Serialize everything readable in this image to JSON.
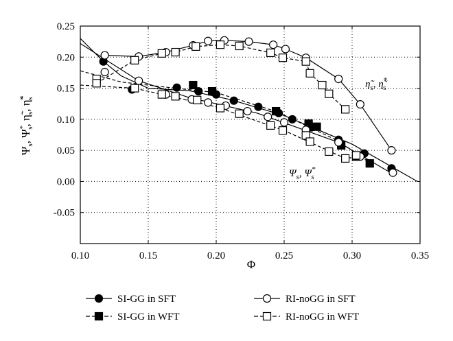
{
  "chart_data": {
    "type": "line",
    "title": "",
    "xlabel": "Φ",
    "ylabel": "Ψ_s, Ψ*_s, η̃_s, η̃*_s",
    "xlim": [
      0.1,
      0.35
    ],
    "ylim": [
      -0.1,
      0.25
    ],
    "x_ticks": [
      0.1,
      0.15,
      0.2,
      0.25,
      0.3,
      0.35
    ],
    "y_ticks": [
      -0.05,
      0.0,
      0.05,
      0.1,
      0.15,
      0.2,
      0.25
    ],
    "x_tick_labels": [
      "0.10",
      "0.15",
      "0.20",
      "0.25",
      "0.30",
      "0.35"
    ],
    "y_tick_labels": [
      "-0.05",
      "0.00",
      "0.05",
      "0.10",
      "0.15",
      "0.20",
      "0.25"
    ],
    "grid": "dotted",
    "annotations": [
      {
        "text": "η̃_s, η̃*_s",
        "near": "efficiency curves"
      },
      {
        "text": "Ψ_s, Ψ*_s",
        "near": "pressure coefficient curves"
      }
    ],
    "series": [
      {
        "name": "SI-GG in SFT",
        "marker": "filled-circle",
        "line": "solid",
        "points": [
          [
            0.117,
            0.193
          ],
          [
            0.138,
            0.148
          ],
          [
            0.171,
            0.151
          ],
          [
            0.187,
            0.145
          ],
          [
            0.2,
            0.14
          ],
          [
            0.213,
            0.13
          ],
          [
            0.231,
            0.12
          ],
          [
            0.246,
            0.11
          ],
          [
            0.256,
            0.1
          ],
          [
            0.27,
            0.087
          ],
          [
            0.29,
            0.067
          ],
          [
            0.309,
            0.045
          ],
          [
            0.329,
            0.021
          ]
        ]
      },
      {
        "name": "SI-GG in WFT",
        "marker": "filled-square",
        "line": "dashed",
        "points": [
          [
            0.183,
            0.155
          ],
          [
            0.197,
            0.145
          ],
          [
            0.244,
            0.113
          ],
          [
            0.268,
            0.093
          ],
          [
            0.274,
            0.088
          ],
          [
            0.292,
            0.058
          ],
          [
            0.303,
            0.04
          ],
          [
            0.313,
            0.029
          ]
        ]
      },
      {
        "name": "RI-noGG in SFT",
        "marker": "open-circle",
        "line": "solid",
        "points": [
          [
            0.118,
            0.176
          ],
          [
            0.143,
            0.162
          ],
          [
            0.163,
            0.14
          ],
          [
            0.182,
            0.132
          ],
          [
            0.194,
            0.127
          ],
          [
            0.207,
            0.122
          ],
          [
            0.223,
            0.113
          ],
          [
            0.238,
            0.104
          ],
          [
            0.25,
            0.095
          ],
          [
            0.266,
            0.083
          ],
          [
            0.29,
            0.063
          ],
          [
            0.306,
            0.04
          ],
          [
            0.33,
            0.014
          ]
        ]
      },
      {
        "name": "RI-noGG in WFT",
        "marker": "open-square",
        "line": "dashed",
        "points": [
          [
            0.112,
            0.165
          ],
          [
            0.14,
            0.15
          ],
          [
            0.16,
            0.14
          ],
          [
            0.17,
            0.137
          ],
          [
            0.186,
            0.131
          ],
          [
            0.203,
            0.118
          ],
          [
            0.217,
            0.109
          ],
          [
            0.24,
            0.09
          ],
          [
            0.249,
            0.082
          ],
          [
            0.266,
            0.074
          ],
          [
            0.269,
            0.064
          ],
          [
            0.283,
            0.048
          ],
          [
            0.295,
            0.037
          ],
          [
            0.303,
            0.042
          ]
        ]
      },
      {
        "name": "RI-noGG in SFT (efficiency)",
        "marker": "open-circle",
        "line": "solid",
        "legend": false,
        "points": [
          [
            0.118,
            0.203
          ],
          [
            0.143,
            0.201
          ],
          [
            0.163,
            0.208
          ],
          [
            0.183,
            0.219
          ],
          [
            0.194,
            0.226
          ],
          [
            0.206,
            0.227
          ],
          [
            0.224,
            0.225
          ],
          [
            0.242,
            0.22
          ],
          [
            0.251,
            0.213
          ],
          [
            0.266,
            0.199
          ],
          [
            0.29,
            0.165
          ],
          [
            0.306,
            0.124
          ],
          [
            0.329,
            0.05
          ]
        ]
      },
      {
        "name": "RI-noGG in WFT (efficiency)",
        "marker": "open-square",
        "line": "dashed",
        "legend": false,
        "points": [
          [
            0.112,
            0.158
          ],
          [
            0.14,
            0.195
          ],
          [
            0.16,
            0.206
          ],
          [
            0.17,
            0.208
          ],
          [
            0.185,
            0.217
          ],
          [
            0.203,
            0.22
          ],
          [
            0.217,
            0.218
          ],
          [
            0.24,
            0.207
          ],
          [
            0.249,
            0.199
          ],
          [
            0.266,
            0.193
          ],
          [
            0.269,
            0.174
          ],
          [
            0.278,
            0.155
          ],
          [
            0.283,
            0.141
          ],
          [
            0.295,
            0.116
          ]
        ]
      },
      {
        "name": "SI-GG in SFT (fit)",
        "marker": "none",
        "line": "solid",
        "legend": false,
        "points": [
          [
            0.1,
            0.23
          ],
          [
            0.117,
            0.193
          ],
          [
            0.13,
            0.17
          ],
          [
            0.15,
            0.15
          ],
          [
            0.18,
            0.146
          ],
          [
            0.21,
            0.132
          ],
          [
            0.25,
            0.106
          ],
          [
            0.3,
            0.06
          ],
          [
            0.348,
            0.0
          ]
        ]
      },
      {
        "name": "SI-GG in WFT (fit)",
        "marker": "none",
        "line": "dashed",
        "legend": false,
        "points": [
          [
            0.1,
            0.178
          ],
          [
            0.13,
            0.16
          ],
          [
            0.17,
            0.15
          ],
          [
            0.2,
            0.143
          ],
          [
            0.245,
            0.112
          ],
          [
            0.29,
            0.065
          ],
          [
            0.313,
            0.03
          ]
        ]
      },
      {
        "name": "RI-noGG in SFT (fit)",
        "marker": "none",
        "line": "solid",
        "legend": false,
        "points": [
          [
            0.1,
            0.222
          ],
          [
            0.143,
            0.162
          ],
          [
            0.18,
            0.135
          ],
          [
            0.23,
            0.11
          ],
          [
            0.29,
            0.063
          ],
          [
            0.33,
            0.012
          ]
        ]
      },
      {
        "name": "RI-noGG in WFT (fit)",
        "marker": "none",
        "line": "dashed",
        "legend": false,
        "points": [
          [
            0.1,
            0.155
          ],
          [
            0.14,
            0.15
          ],
          [
            0.2,
            0.12
          ],
          [
            0.25,
            0.082
          ],
          [
            0.295,
            0.037
          ],
          [
            0.305,
            0.04
          ]
        ]
      }
    ]
  }
}
